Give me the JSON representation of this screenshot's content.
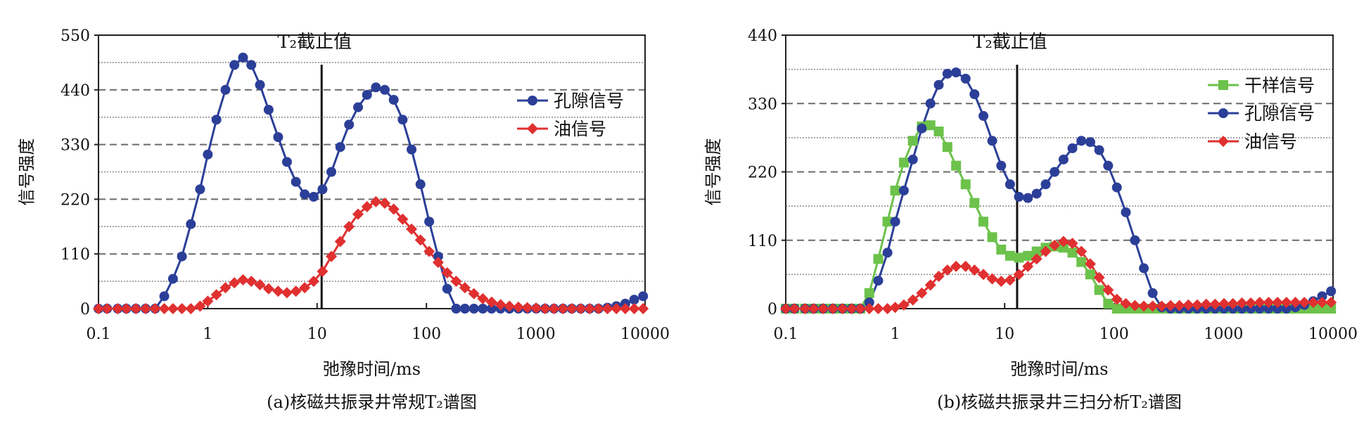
{
  "chart_data": [
    {
      "type": "line",
      "caption": "(a)核磁共振录井常规T₂谱图",
      "xlabel": "弛豫时间/ms",
      "ylabel": "信号强度",
      "x_scale": "log",
      "xlim": [
        0.1,
        10000
      ],
      "ylim": [
        0,
        550
      ],
      "x_ticks": [
        "0.1",
        "1",
        "10",
        "100",
        "1000",
        "10000"
      ],
      "x_tick_values": [
        0.1,
        1,
        10,
        100,
        1000,
        10000
      ],
      "y_ticks": [
        "0",
        "110",
        "220",
        "330",
        "440",
        "550"
      ],
      "y_tick_values": [
        0,
        110,
        220,
        330,
        440,
        550
      ],
      "grid": "horizontal dashed",
      "legend_position": "right",
      "cutoff": {
        "label": "T₂截止值",
        "x": 11
      },
      "series": [
        {
          "name": "孔隙信号",
          "color": "#2b3f98",
          "marker": "circle",
          "x": [
            0.1,
            0.12,
            0.15,
            0.18,
            0.22,
            0.27,
            0.33,
            0.4,
            0.48,
            0.58,
            0.7,
            0.85,
            1.0,
            1.2,
            1.45,
            1.75,
            2.1,
            2.5,
            3.0,
            3.6,
            4.4,
            5.3,
            6.4,
            7.7,
            9.3,
            11.2,
            13.5,
            16.3,
            19.6,
            23.7,
            28.6,
            34.5,
            41.6,
            50.2,
            60.6,
            73.1,
            88.2,
            106,
            128,
            155,
            187,
            225,
            272,
            328,
            395,
            477,
            575,
            694,
            837,
            1010,
            1218,
            1470,
            1773,
            2139,
            2580,
            3113,
            3755,
            4530,
            5465,
            6593,
            7954,
            9596
          ],
          "y": [
            0,
            0,
            0,
            0,
            0,
            0,
            0,
            25,
            60,
            105,
            170,
            240,
            310,
            380,
            440,
            490,
            505,
            490,
            450,
            400,
            345,
            295,
            255,
            230,
            225,
            240,
            275,
            325,
            370,
            405,
            430,
            445,
            440,
            420,
            380,
            320,
            250,
            175,
            105,
            40,
            0,
            0,
            0,
            0,
            0,
            0,
            0,
            0,
            0,
            0,
            0,
            0,
            0,
            0,
            0,
            0,
            0,
            2,
            5,
            10,
            18,
            25
          ]
        },
        {
          "name": "油信号",
          "color": "#e03030",
          "marker": "diamond",
          "x": [
            0.1,
            0.12,
            0.15,
            0.18,
            0.22,
            0.27,
            0.33,
            0.4,
            0.48,
            0.58,
            0.7,
            0.85,
            1.0,
            1.2,
            1.45,
            1.75,
            2.1,
            2.5,
            3.0,
            3.6,
            4.4,
            5.3,
            6.4,
            7.7,
            9.3,
            11.2,
            13.5,
            16.3,
            19.6,
            23.7,
            28.6,
            34.5,
            41.6,
            50.2,
            60.6,
            73.1,
            88.2,
            106,
            128,
            155,
            187,
            225,
            272,
            328,
            395,
            477,
            575,
            694,
            837,
            1010,
            1218,
            1470,
            1773,
            2139,
            2580,
            3113,
            3755,
            4530,
            5465,
            6593,
            7954,
            9596
          ],
          "y": [
            0,
            0,
            0,
            0,
            0,
            0,
            0,
            0,
            0,
            0,
            0,
            5,
            15,
            28,
            42,
            52,
            58,
            55,
            48,
            40,
            35,
            32,
            35,
            42,
            55,
            75,
            105,
            135,
            165,
            190,
            205,
            215,
            212,
            200,
            180,
            160,
            138,
            115,
            93,
            72,
            55,
            42,
            30,
            20,
            13,
            8,
            5,
            3,
            2,
            1,
            0,
            0,
            0,
            0,
            0,
            0,
            0,
            0,
            0,
            0,
            0,
            0
          ]
        }
      ]
    },
    {
      "type": "line",
      "caption": "(b)核磁共振录井三扫分析T₂谱图",
      "xlabel": "弛豫时间/ms",
      "ylabel": "信号强度",
      "x_scale": "log",
      "xlim": [
        0.1,
        10000
      ],
      "ylim": [
        0,
        440
      ],
      "x_ticks": [
        "0.1",
        "1",
        "10",
        "100",
        "1000",
        "10000"
      ],
      "x_tick_values": [
        0.1,
        1,
        10,
        100,
        1000,
        10000
      ],
      "y_ticks": [
        "0",
        "110",
        "220",
        "330",
        "440"
      ],
      "y_tick_values": [
        0,
        110,
        220,
        330,
        440
      ],
      "grid": "horizontal dashed",
      "legend_position": "right",
      "cutoff": {
        "label": "T₂截止值",
        "x": 13
      },
      "series": [
        {
          "name": "干样信号",
          "color": "#6cc24a",
          "marker": "square",
          "x": [
            0.1,
            0.12,
            0.15,
            0.18,
            0.22,
            0.27,
            0.33,
            0.4,
            0.48,
            0.58,
            0.7,
            0.85,
            1.0,
            1.2,
            1.45,
            1.75,
            2.1,
            2.5,
            3.0,
            3.6,
            4.4,
            5.3,
            6.4,
            7.7,
            9.3,
            11.2,
            13.5,
            16.3,
            19.6,
            23.7,
            28.6,
            34.5,
            41.6,
            50.2,
            60.6,
            73.1,
            88.2,
            106,
            128,
            155,
            187,
            225,
            272,
            328,
            395,
            477,
            575,
            694,
            837,
            1010,
            1218,
            1470,
            1773,
            2139,
            2580,
            3113,
            3755,
            4530,
            5465,
            6593,
            7954,
            9596
          ],
          "y": [
            0,
            0,
            0,
            0,
            0,
            0,
            0,
            0,
            0,
            25,
            80,
            140,
            190,
            235,
            270,
            293,
            295,
            285,
            260,
            230,
            200,
            170,
            140,
            115,
            95,
            85,
            82,
            85,
            92,
            98,
            100,
            98,
            90,
            75,
            55,
            30,
            8,
            0,
            0,
            0,
            0,
            0,
            0,
            0,
            0,
            0,
            0,
            0,
            0,
            0,
            0,
            0,
            0,
            0,
            0,
            0,
            0,
            0,
            0,
            0,
            0,
            0
          ]
        },
        {
          "name": "孔隙信号",
          "color": "#2b3f98",
          "marker": "circle",
          "x": [
            0.1,
            0.12,
            0.15,
            0.18,
            0.22,
            0.27,
            0.33,
            0.4,
            0.48,
            0.58,
            0.7,
            0.85,
            1.0,
            1.2,
            1.45,
            1.75,
            2.1,
            2.5,
            3.0,
            3.6,
            4.4,
            5.3,
            6.4,
            7.7,
            9.3,
            11.2,
            13.5,
            16.3,
            19.6,
            23.7,
            28.6,
            34.5,
            41.6,
            50.2,
            60.6,
            73.1,
            88.2,
            106,
            128,
            155,
            187,
            225,
            272,
            328,
            395,
            477,
            575,
            694,
            837,
            1010,
            1218,
            1470,
            1773,
            2139,
            2580,
            3113,
            3755,
            4530,
            5465,
            6593,
            7954,
            9596
          ],
          "y": [
            0,
            0,
            0,
            0,
            0,
            0,
            0,
            0,
            0,
            10,
            45,
            90,
            140,
            190,
            240,
            290,
            330,
            360,
            378,
            380,
            370,
            345,
            310,
            270,
            230,
            200,
            180,
            178,
            185,
            200,
            220,
            240,
            258,
            270,
            268,
            255,
            230,
            195,
            155,
            110,
            65,
            25,
            2,
            0,
            0,
            0,
            0,
            0,
            0,
            0,
            0,
            0,
            0,
            0,
            0,
            0,
            0,
            2,
            6,
            12,
            20,
            28
          ]
        },
        {
          "name": "油信号",
          "color": "#e03030",
          "marker": "diamond",
          "x": [
            0.1,
            0.12,
            0.15,
            0.18,
            0.22,
            0.27,
            0.33,
            0.4,
            0.48,
            0.58,
            0.7,
            0.85,
            1.0,
            1.2,
            1.45,
            1.75,
            2.1,
            2.5,
            3.0,
            3.6,
            4.4,
            5.3,
            6.4,
            7.7,
            9.3,
            11.2,
            13.5,
            16.3,
            19.6,
            23.7,
            28.6,
            34.5,
            41.6,
            50.2,
            60.6,
            73.1,
            88.2,
            106,
            128,
            155,
            187,
            225,
            272,
            328,
            395,
            477,
            575,
            694,
            837,
            1010,
            1218,
            1470,
            1773,
            2139,
            2580,
            3113,
            3755,
            4530,
            5465,
            6593,
            7954,
            9596
          ],
          "y": [
            0,
            0,
            0,
            0,
            0,
            0,
            0,
            0,
            0,
            0,
            0,
            0,
            2,
            6,
            14,
            25,
            38,
            52,
            62,
            68,
            68,
            62,
            55,
            48,
            44,
            46,
            55,
            68,
            80,
            92,
            102,
            108,
            105,
            92,
            72,
            50,
            30,
            15,
            8,
            5,
            4,
            4,
            4,
            5,
            5,
            6,
            6,
            7,
            7,
            8,
            8,
            9,
            9,
            10,
            10,
            10,
            10,
            10,
            10,
            10,
            10,
            10
          ]
        }
      ]
    }
  ]
}
